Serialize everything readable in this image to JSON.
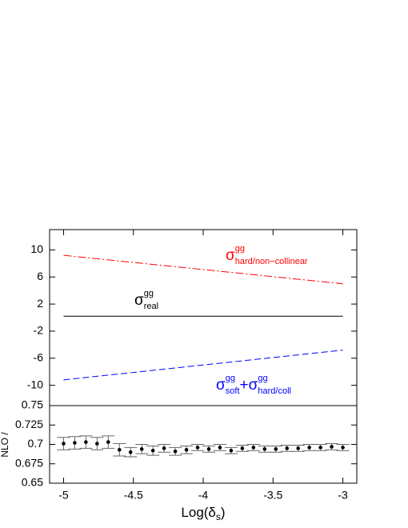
{
  "chart_data": [
    {
      "type": "line",
      "ylim": [
        -13,
        13
      ],
      "yticks": [
        -10,
        -6,
        -2,
        2,
        6,
        10
      ],
      "xlim": [
        -5.1,
        -2.9
      ],
      "series": [
        {
          "color": "#ff0000",
          "dash": "10,3,2,3",
          "x": [
            -5,
            -3
          ],
          "values": [
            9.2,
            5.0
          ]
        },
        {
          "color": "#000000",
          "dash": "none",
          "x": [
            -5,
            -3
          ],
          "values": [
            0.2,
            0.2
          ]
        },
        {
          "color": "#0000ff",
          "dash": "8,4",
          "x": [
            -5,
            -3
          ],
          "values": [
            -9.2,
            -4.8
          ]
        }
      ],
      "annotations": [
        {
          "color": "#ff0000",
          "parts": [
            {
              "base": "σ",
              "sup": "gg",
              "sub": "hard/non−collinear"
            }
          ]
        },
        {
          "color": "#000000",
          "parts": [
            {
              "base": "σ",
              "sup": "gg",
              "sub": "real"
            }
          ]
        },
        {
          "color": "#0000ff",
          "parts": [
            {
              "base": "σ",
              "sup": "gg",
              "sub": "soft"
            },
            {
              "base": "+σ",
              "sup": "gg",
              "sub": "hard/coll"
            }
          ]
        }
      ]
    },
    {
      "type": "errorbar",
      "ylim": [
        0.65,
        0.75
      ],
      "yticks": [
        0.65,
        0.675,
        0.7,
        0.725,
        0.75
      ],
      "xlim": [
        -5.1,
        -2.9
      ],
      "xticks": [
        -5,
        -4.5,
        -4,
        -3.5,
        -3
      ],
      "xlabel": {
        "base": "Log(δ",
        "sub": "s",
        "tail": ")"
      },
      "ylabel": "NLO /",
      "color": "#000000",
      "x": [
        -5,
        -4.92,
        -4.84,
        -4.76,
        -4.68,
        -4.6,
        -4.52,
        -4.44,
        -4.36,
        -4.28,
        -4.2,
        -4.12,
        -4.04,
        -3.96,
        -3.88,
        -3.8,
        -3.72,
        -3.64,
        -3.56,
        -3.48,
        -3.4,
        -3.32,
        -3.24,
        -3.16,
        -3.08,
        -3.0
      ],
      "values": [
        0.701,
        0.702,
        0.703,
        0.701,
        0.703,
        0.693,
        0.69,
        0.694,
        0.692,
        0.695,
        0.691,
        0.693,
        0.696,
        0.694,
        0.696,
        0.692,
        0.695,
        0.696,
        0.694,
        0.694,
        0.695,
        0.695,
        0.696,
        0.696,
        0.697,
        0.696
      ],
      "errors": [
        0.008,
        0.008,
        0.008,
        0.008,
        0.008,
        0.008,
        0.006,
        0.006,
        0.006,
        0.005,
        0.005,
        0.005,
        0.004,
        0.004,
        0.004,
        0.004,
        0.004,
        0.004,
        0.004,
        0.004,
        0.004,
        0.004,
        0.004,
        0.004,
        0.004,
        0.004
      ]
    }
  ]
}
